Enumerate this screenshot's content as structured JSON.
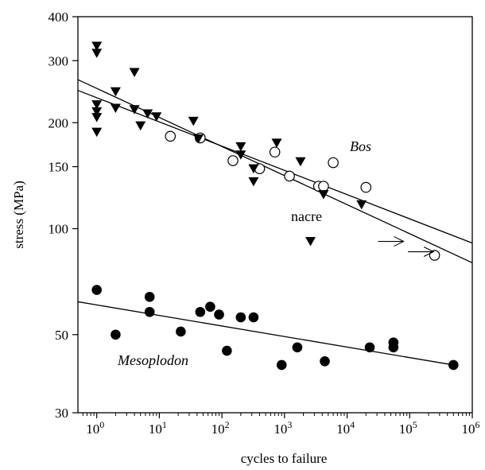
{
  "chart_data": {
    "type": "scatter",
    "title": "",
    "xlabel": "cycles to failure",
    "ylabel": "stress (MPa)",
    "xscale": "log",
    "yscale": "log",
    "xlim": [
      0.5,
      1000000
    ],
    "ylim": [
      30,
      400
    ],
    "x_ticks": [
      {
        "value": 1,
        "base": "10",
        "exp": "0"
      },
      {
        "value": 10,
        "base": "10",
        "exp": "1"
      },
      {
        "value": 100,
        "base": "10",
        "exp": "2"
      },
      {
        "value": 1000,
        "base": "10",
        "exp": "3"
      },
      {
        "value": 10000,
        "base": "10",
        "exp": "4"
      },
      {
        "value": 100000,
        "base": "10",
        "exp": "5"
      },
      {
        "value": 1000000,
        "base": "10",
        "exp": "6"
      }
    ],
    "y_ticks": [
      {
        "value": 30,
        "label": "30"
      },
      {
        "value": 50,
        "label": "50"
      },
      {
        "value": 100,
        "label": "100"
      },
      {
        "value": 150,
        "label": "150"
      },
      {
        "value": 200,
        "label": "200"
      },
      {
        "value": 300,
        "label": "300"
      },
      {
        "value": 400,
        "label": "400"
      }
    ],
    "grid": false,
    "legend": "none",
    "annotations": {
      "bos": "Bos",
      "nacre": "nacre",
      "mesoplodon": "Mesoplodon"
    },
    "series": [
      {
        "name": "Bos",
        "marker": "open-circle",
        "points": [
          [
            15,
            183
          ],
          [
            45,
            181
          ],
          [
            150,
            156
          ],
          [
            400,
            148
          ],
          [
            700,
            165
          ],
          [
            1200,
            141
          ],
          [
            3500,
            132
          ],
          [
            4200,
            132
          ],
          [
            6000,
            154
          ],
          [
            20000,
            131
          ],
          [
            250000,
            84
          ]
        ]
      },
      {
        "name": "nacre",
        "marker": "filled-triangle-down",
        "points": [
          [
            1,
            330
          ],
          [
            1,
            315
          ],
          [
            1,
            225
          ],
          [
            1,
            215
          ],
          [
            1,
            207
          ],
          [
            1,
            188
          ],
          [
            2,
            245
          ],
          [
            2,
            220
          ],
          [
            4,
            278
          ],
          [
            4,
            218
          ],
          [
            5,
            196
          ],
          [
            6.5,
            212
          ],
          [
            9,
            208
          ],
          [
            35,
            202
          ],
          [
            42,
            180
          ],
          [
            200,
            171
          ],
          [
            200,
            162
          ],
          [
            320,
            148
          ],
          [
            320,
            136
          ],
          [
            750,
            175
          ],
          [
            1800,
            155
          ],
          [
            2600,
            92
          ],
          [
            4200,
            125
          ],
          [
            17000,
            117
          ]
        ],
        "runouts": [
          [
            50000,
            92
          ],
          [
            150000,
            86
          ]
        ]
      },
      {
        "name": "Mesoplodon",
        "marker": "filled-circle",
        "points": [
          [
            1,
            67
          ],
          [
            2,
            50
          ],
          [
            7,
            64
          ],
          [
            7,
            58
          ],
          [
            22,
            51
          ],
          [
            45,
            58
          ],
          [
            65,
            60
          ],
          [
            90,
            57
          ],
          [
            120,
            45
          ],
          [
            200,
            56
          ],
          [
            320,
            56
          ],
          [
            900,
            41
          ],
          [
            1600,
            46
          ],
          [
            4400,
            42
          ],
          [
            23000,
            46
          ],
          [
            55000,
            46
          ],
          [
            55000,
            47.5
          ],
          [
            500000,
            41
          ]
        ]
      }
    ],
    "fits": [
      {
        "name": "Bos",
        "x_range": [
          0.5,
          1000000
        ],
        "y_range": [
          247,
          91
        ]
      },
      {
        "name": "nacre",
        "x_range": [
          0.5,
          1000000
        ],
        "y_range": [
          265,
          80
        ]
      },
      {
        "name": "Mesoplodon",
        "x_range": [
          0.5,
          500000
        ],
        "y_range": [
          62,
          41
        ]
      }
    ]
  }
}
